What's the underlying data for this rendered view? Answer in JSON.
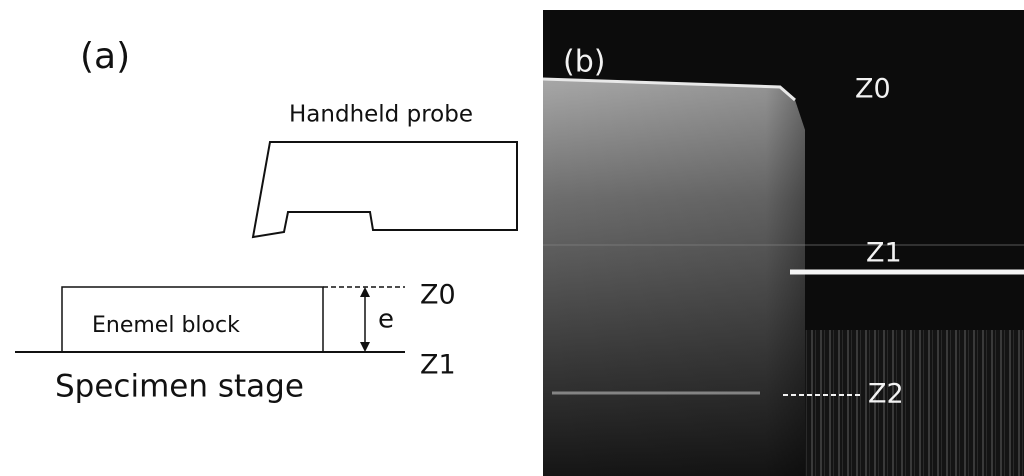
{
  "panel_a": {
    "label": "(a)",
    "probe_label": "Handheld probe",
    "block_label": "Enemel block",
    "thickness_label": "e",
    "z0_label": "Z0",
    "z1_label": "Z1",
    "stage_label": "Specimen stage"
  },
  "panel_b": {
    "label": "(b)",
    "z0_label": "Z0",
    "z1_label": "Z1",
    "z2_label": "Z2"
  }
}
